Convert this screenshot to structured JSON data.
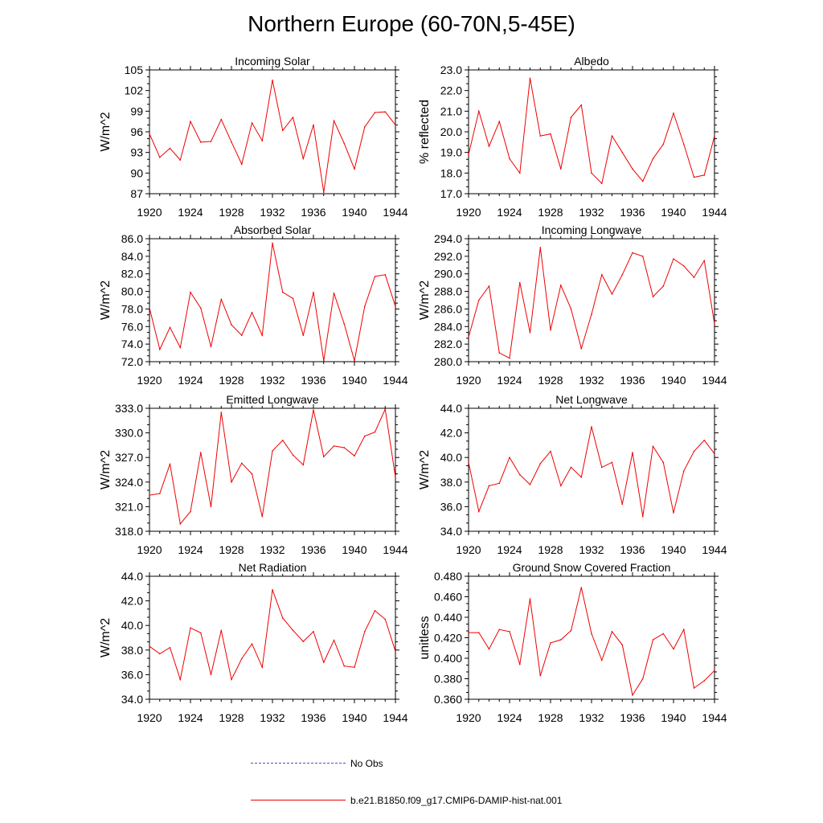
{
  "title": "Northern Europe (60-70N,5-45E)",
  "legend": {
    "obs_label": "No Obs",
    "obs_color": "#4d4dc8",
    "model_label": "b.e21.B1850.f09_g17.CMIP6-DAMIP-hist-nat.001",
    "model_color": "#ee0000"
  },
  "chart_data": [
    {
      "type": "line",
      "title": "Incoming Solar",
      "ylabel": "W/m^2",
      "xlim": [
        1920,
        1944
      ],
      "ylim": [
        87,
        105
      ],
      "yticks": [
        "87",
        "90",
        "93",
        "96",
        "99",
        "102",
        "105"
      ],
      "xticks": [
        "1920",
        "1924",
        "1928",
        "1932",
        "1936",
        "1940",
        "1944"
      ],
      "x": [
        1920,
        1921,
        1922,
        1923,
        1924,
        1925,
        1926,
        1927,
        1928,
        1929,
        1930,
        1931,
        1932,
        1933,
        1934,
        1935,
        1936,
        1937,
        1938,
        1939,
        1940,
        1941,
        1942,
        1943,
        1944
      ],
      "series": [
        {
          "values": [
            95.7,
            92.3,
            93.6,
            91.9,
            97.5,
            94.5,
            94.6,
            97.8,
            94.5,
            91.3,
            97.3,
            94.7,
            103.5,
            96.2,
            98.1,
            92.1,
            97.0,
            87.2,
            97.6,
            94.3,
            90.6,
            96.7,
            98.8,
            98.9,
            97.0
          ]
        }
      ]
    },
    {
      "type": "line",
      "title": "Albedo",
      "ylabel": "% reflected",
      "xlim": [
        1920,
        1944
      ],
      "ylim": [
        17.0,
        23.0
      ],
      "yticks": [
        "17.0",
        "18.0",
        "19.0",
        "20.0",
        "21.0",
        "22.0",
        "23.0"
      ],
      "xticks": [
        "1920",
        "1924",
        "1928",
        "1932",
        "1936",
        "1940",
        "1944"
      ],
      "x": [
        1920,
        1921,
        1922,
        1923,
        1924,
        1925,
        1926,
        1927,
        1928,
        1929,
        1930,
        1931,
        1932,
        1933,
        1934,
        1935,
        1936,
        1937,
        1938,
        1939,
        1940,
        1941,
        1942,
        1943,
        1944
      ],
      "series": [
        {
          "values": [
            18.9,
            21.0,
            19.3,
            20.5,
            18.7,
            18.0,
            22.6,
            19.8,
            19.9,
            18.2,
            20.7,
            21.3,
            18.0,
            17.5,
            19.8,
            19.0,
            18.2,
            17.6,
            18.7,
            19.4,
            20.9,
            19.4,
            17.8,
            17.9,
            19.8
          ]
        }
      ]
    },
    {
      "type": "line",
      "title": "Absorbed Solar",
      "ylabel": "W/m^2",
      "xlim": [
        1920,
        1944
      ],
      "ylim": [
        72.0,
        86.0
      ],
      "yticks": [
        "72.0",
        "74.0",
        "76.0",
        "78.0",
        "80.0",
        "82.0",
        "84.0",
        "86.0"
      ],
      "xticks": [
        "1920",
        "1924",
        "1928",
        "1932",
        "1936",
        "1940",
        "1944"
      ],
      "x": [
        1920,
        1921,
        1922,
        1923,
        1924,
        1925,
        1926,
        1927,
        1928,
        1929,
        1930,
        1931,
        1932,
        1933,
        1934,
        1935,
        1936,
        1937,
        1938,
        1939,
        1940,
        1941,
        1942,
        1943,
        1944
      ],
      "series": [
        {
          "values": [
            78.1,
            73.4,
            75.9,
            73.6,
            79.9,
            78.1,
            73.7,
            79.1,
            76.2,
            75.0,
            77.6,
            75.0,
            85.5,
            79.9,
            79.2,
            75.0,
            79.9,
            72.1,
            79.8,
            76.3,
            72.1,
            78.3,
            81.7,
            81.9,
            78.3
          ]
        }
      ]
    },
    {
      "type": "line",
      "title": "Incoming Longwave",
      "ylabel": "W/m^2",
      "xlim": [
        1920,
        1944
      ],
      "ylim": [
        280.0,
        294.0
      ],
      "yticks": [
        "280.0",
        "282.0",
        "284.0",
        "286.0",
        "288.0",
        "290.0",
        "292.0",
        "294.0"
      ],
      "xticks": [
        "1920",
        "1924",
        "1928",
        "1932",
        "1936",
        "1940",
        "1944"
      ],
      "x": [
        1920,
        1921,
        1922,
        1923,
        1924,
        1925,
        1926,
        1927,
        1928,
        1929,
        1930,
        1931,
        1932,
        1933,
        1934,
        1935,
        1936,
        1937,
        1938,
        1939,
        1940,
        1941,
        1942,
        1943,
        1944
      ],
      "series": [
        {
          "values": [
            282.8,
            287.0,
            288.6,
            281.0,
            280.4,
            289.0,
            283.3,
            293.0,
            283.6,
            288.7,
            286.0,
            281.5,
            285.4,
            289.9,
            287.7,
            289.9,
            292.4,
            292.0,
            287.4,
            288.6,
            291.7,
            290.9,
            289.6,
            291.5,
            284.3
          ]
        }
      ]
    },
    {
      "type": "line",
      "title": "Emitted Longwave",
      "ylabel": "W/m^2",
      "xlim": [
        1920,
        1944
      ],
      "ylim": [
        318.0,
        333.0
      ],
      "yticks": [
        "318.0",
        "321.0",
        "324.0",
        "327.0",
        "330.0",
        "333.0"
      ],
      "xticks": [
        "1920",
        "1924",
        "1928",
        "1932",
        "1936",
        "1940",
        "1944"
      ],
      "x": [
        1920,
        1921,
        1922,
        1923,
        1924,
        1925,
        1926,
        1927,
        1928,
        1929,
        1930,
        1931,
        1932,
        1933,
        1934,
        1935,
        1936,
        1937,
        1938,
        1939,
        1940,
        1941,
        1942,
        1943,
        1944
      ],
      "series": [
        {
          "values": [
            322.4,
            322.6,
            326.2,
            318.9,
            320.4,
            327.6,
            321.0,
            332.5,
            324.0,
            326.3,
            325.0,
            319.8,
            327.8,
            329.1,
            327.3,
            326.1,
            332.8,
            327.1,
            328.4,
            328.2,
            327.2,
            329.6,
            330.1,
            332.9,
            324.6
          ]
        }
      ]
    },
    {
      "type": "line",
      "title": "Net Longwave",
      "ylabel": "W/m^2",
      "xlim": [
        1920,
        1944
      ],
      "ylim": [
        34.0,
        44.0
      ],
      "yticks": [
        "34.0",
        "36.0",
        "38.0",
        "40.0",
        "42.0",
        "44.0"
      ],
      "xticks": [
        "1920",
        "1924",
        "1928",
        "1932",
        "1936",
        "1940",
        "1944"
      ],
      "x": [
        1920,
        1921,
        1922,
        1923,
        1924,
        1925,
        1926,
        1927,
        1928,
        1929,
        1930,
        1931,
        1932,
        1933,
        1934,
        1935,
        1936,
        1937,
        1938,
        1939,
        1940,
        1941,
        1942,
        1943,
        1944
      ],
      "series": [
        {
          "values": [
            39.6,
            35.6,
            37.7,
            37.9,
            40.0,
            38.6,
            37.8,
            39.5,
            40.5,
            37.7,
            39.2,
            38.4,
            42.5,
            39.2,
            39.6,
            36.2,
            40.4,
            35.2,
            40.9,
            39.6,
            35.5,
            38.9,
            40.5,
            41.4,
            40.3
          ]
        }
      ]
    },
    {
      "type": "line",
      "title": "Net Radiation",
      "ylabel": "W/m^2",
      "xlim": [
        1920,
        1944
      ],
      "ylim": [
        34.0,
        44.0
      ],
      "yticks": [
        "34.0",
        "36.0",
        "38.0",
        "40.0",
        "42.0",
        "44.0"
      ],
      "xticks": [
        "1920",
        "1924",
        "1928",
        "1932",
        "1936",
        "1940",
        "1944"
      ],
      "x": [
        1920,
        1921,
        1922,
        1923,
        1924,
        1925,
        1926,
        1927,
        1928,
        1929,
        1930,
        1931,
        1932,
        1933,
        1934,
        1935,
        1936,
        1937,
        1938,
        1939,
        1940,
        1941,
        1942,
        1943,
        1944
      ],
      "series": [
        {
          "values": [
            38.3,
            37.7,
            38.2,
            35.6,
            39.8,
            39.4,
            36.0,
            39.6,
            35.6,
            37.3,
            38.5,
            36.6,
            42.9,
            40.6,
            39.6,
            38.7,
            39.5,
            37.0,
            38.8,
            36.7,
            36.6,
            39.5,
            41.2,
            40.5,
            37.9
          ]
        }
      ]
    },
    {
      "type": "line",
      "title": "Ground Snow Covered Fraction",
      "ylabel": "unitless",
      "xlim": [
        1920,
        1944
      ],
      "ylim": [
        0.36,
        0.48
      ],
      "yticks": [
        "0.360",
        "0.380",
        "0.400",
        "0.420",
        "0.440",
        "0.460",
        "0.480"
      ],
      "xticks": [
        "1920",
        "1924",
        "1928",
        "1932",
        "1936",
        "1940",
        "1944"
      ],
      "x": [
        1920,
        1921,
        1922,
        1923,
        1924,
        1925,
        1926,
        1927,
        1928,
        1929,
        1930,
        1931,
        1932,
        1933,
        1934,
        1935,
        1936,
        1937,
        1938,
        1939,
        1940,
        1941,
        1942,
        1943,
        1944
      ],
      "series": [
        {
          "values": [
            0.425,
            0.425,
            0.409,
            0.428,
            0.426,
            0.394,
            0.458,
            0.383,
            0.415,
            0.418,
            0.427,
            0.469,
            0.424,
            0.398,
            0.426,
            0.413,
            0.364,
            0.38,
            0.418,
            0.424,
            0.409,
            0.428,
            0.371,
            0.378,
            0.388
          ]
        }
      ]
    }
  ]
}
